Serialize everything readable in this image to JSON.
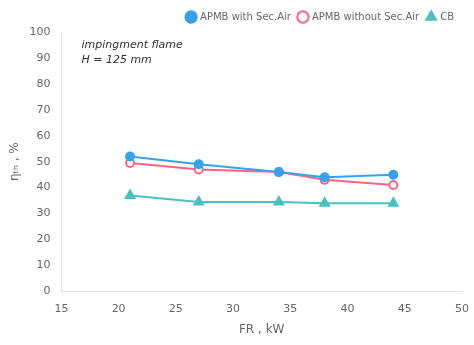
{
  "chart_data": {
    "type": "line",
    "x": [
      21,
      27,
      34,
      38,
      44
    ],
    "series": [
      {
        "name": "APMB with Sec.Air",
        "values": [
          52,
          49,
          46,
          44,
          45
        ],
        "marker": "circle"
      },
      {
        "name": "APMB without Sec.Air",
        "values": [
          49.5,
          47,
          46,
          43,
          41
        ],
        "marker": "open_circle"
      },
      {
        "name": "CB",
        "values": [
          37,
          34.5,
          34.5,
          34,
          34
        ],
        "marker": "triangle"
      }
    ],
    "xlabel": "FR , kW",
    "ylabel": "ηₜₕ , %",
    "annotations": [
      "impingment flame",
      "H = 125 mm"
    ],
    "xlim": [
      15,
      50
    ],
    "ylim": [
      0,
      100
    ],
    "xticks": [
      15,
      20,
      25,
      30,
      35,
      40,
      45,
      50
    ],
    "yticks": [
      0,
      10,
      20,
      30,
      40,
      50,
      60,
      70,
      80,
      90,
      100
    ],
    "legend": "upper right",
    "grid": false
  }
}
